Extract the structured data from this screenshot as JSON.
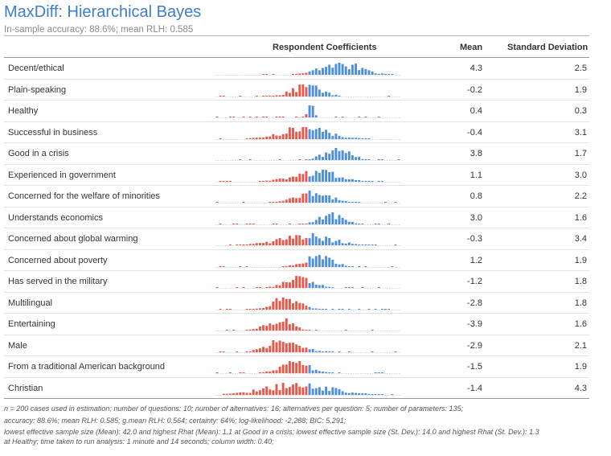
{
  "title": "MaxDiff: Hierarchical Bayes",
  "subtitle": "In-sample accuracy: 88.6%; mean RLH: 0.585",
  "columns": {
    "coefficients": "Respondent Coefficients",
    "mean": "Mean",
    "sd": "Standard Deviation"
  },
  "colors": {
    "negative": "#e8594a",
    "positive": "#4d8fdc",
    "title": "#3e7dcc"
  },
  "spark_x_range": [
    -12,
    12
  ],
  "rows": [
    {
      "label": "Decent/ethical",
      "mean": "4.3",
      "sd": "2.5",
      "mean_value": 4.3,
      "sd_value": 2.5
    },
    {
      "label": "Plain-speaking",
      "mean": "-0.2",
      "sd": "1.9",
      "mean_value": -0.2,
      "sd_value": 1.9
    },
    {
      "label": "Healthy",
      "mean": "0.4",
      "sd": "0.3",
      "mean_value": 0.4,
      "sd_value": 0.3
    },
    {
      "label": "Successful in business",
      "mean": "-0.4",
      "sd": "3.1",
      "mean_value": -0.4,
      "sd_value": 3.1
    },
    {
      "label": "Good in a crisis",
      "mean": "3.8",
      "sd": "1.7",
      "mean_value": 3.8,
      "sd_value": 1.7
    },
    {
      "label": "Experienced in government",
      "mean": "1.1",
      "sd": "3.0",
      "mean_value": 1.1,
      "sd_value": 3.0
    },
    {
      "label": "Concerned for the welfare of minorities",
      "mean": "0.8",
      "sd": "2.2",
      "mean_value": 0.8,
      "sd_value": 2.2
    },
    {
      "label": "Understands economics",
      "mean": "3.0",
      "sd": "1.6",
      "mean_value": 3.0,
      "sd_value": 1.6
    },
    {
      "label": "Concerned about global warming",
      "mean": "-0.3",
      "sd": "3.4",
      "mean_value": -0.3,
      "sd_value": 3.4
    },
    {
      "label": "Concerned about poverty",
      "mean": "1.2",
      "sd": "1.9",
      "mean_value": 1.2,
      "sd_value": 1.9
    },
    {
      "label": "Has served in the military",
      "mean": "-1.2",
      "sd": "1.8",
      "mean_value": -1.2,
      "sd_value": 1.8
    },
    {
      "label": "Multilingual",
      "mean": "-2.8",
      "sd": "1.8",
      "mean_value": -2.8,
      "sd_value": 1.8
    },
    {
      "label": "Entertaining",
      "mean": "-3.9",
      "sd": "1.6",
      "mean_value": -3.9,
      "sd_value": 1.6
    },
    {
      "label": "Male",
      "mean": "-2.9",
      "sd": "2.1",
      "mean_value": -2.9,
      "sd_value": 2.1
    },
    {
      "label": "From a traditional American background",
      "mean": "-1.5",
      "sd": "1.9",
      "mean_value": -1.5,
      "sd_value": 1.9
    },
    {
      "label": "Christian",
      "mean": "-1.4",
      "sd": "4.3",
      "mean_value": -1.4,
      "sd_value": 4.3
    }
  ],
  "footnotes": [
    "n = 200 cases used in estimation; number of questions: 10; number of alternatives: 16; alternatives per question: 5; number of parameters: 135;",
    "accuracy: 88.6%; mean RLH: 0.585; g.mean RLH: 0.564; certainty: 64%; log-likelihood: -2,288; BIC: 5,291;",
    "lowest effective sample size (Mean): 42.0 and highest Rhat (Mean): 1.1 at Good in a crisis; lowest effective sample size (St. Dev.): 14.0 and highest Rhat (St. Dev.): 1.3",
    "at Healthy; time taken to run analysis: 1 minute and 14 seconds; column width: 0.40;"
  ]
}
